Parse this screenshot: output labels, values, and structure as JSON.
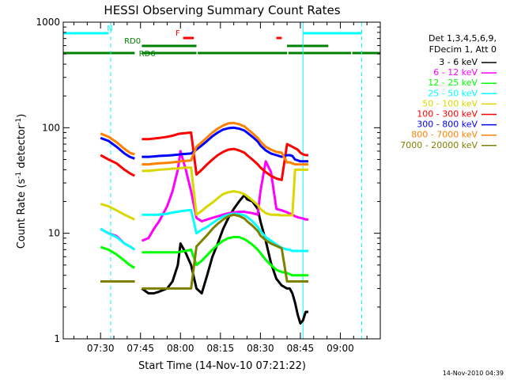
{
  "chart_data": {
    "type": "line",
    "title": "HESSI Observing Summary Count Rates",
    "xlabel": "Start Time (14-Nov-10 07:21:22)",
    "ylabel": "Count Rate (s",
    "ylabel_sup1": "-1",
    "ylabel_mid": " detector",
    "ylabel_sup2": "-1",
    "ylabel_end": ")",
    "y_scale": "log",
    "ylim": [
      1,
      1000
    ],
    "xlim_minutes": [
      -14,
      105
    ],
    "x_ticks": [
      {
        "t": 0,
        "label": "07:30"
      },
      {
        "t": 15,
        "label": "07:45"
      },
      {
        "t": 30,
        "label": "08:00"
      },
      {
        "t": 45,
        "label": "08:15"
      },
      {
        "t": 60,
        "label": "08:30"
      },
      {
        "t": 75,
        "label": "08:45"
      },
      {
        "t": 90,
        "label": "09:00"
      }
    ],
    "y_ticks": [
      {
        "v": 1,
        "label": "1"
      },
      {
        "v": 10,
        "label": "10"
      },
      {
        "v": 100,
        "label": "100"
      },
      {
        "v": 1000,
        "label": "1000"
      }
    ],
    "legend_header": [
      "Det 1,3,4,5,6,9,",
      "FDecim 1, Att 0"
    ],
    "legend_placement": "right",
    "series": [
      {
        "name": "3 - 6 keV",
        "color": "#000000",
        "x": [
          -14,
          -0.5,
          0,
          3,
          6,
          9,
          11,
          12.8,
          13.5,
          15,
          15.5,
          18,
          20,
          22,
          25,
          27,
          29,
          30,
          32,
          34,
          36,
          38,
          40,
          42,
          44,
          46,
          48,
          50,
          52,
          54,
          55,
          57,
          59,
          60,
          62,
          64,
          66,
          68,
          70,
          71,
          72,
          73,
          74,
          75,
          76,
          77,
          78,
          78.5
        ],
        "y": [
          null,
          null,
          3.5,
          3.5,
          3.5,
          3.5,
          3.5,
          3.5,
          null,
          null,
          3,
          2.7,
          2.7,
          2.8,
          3,
          3.5,
          5,
          8,
          6.5,
          5,
          3,
          2.7,
          4,
          6,
          8,
          11,
          14,
          17,
          20,
          23,
          21,
          20,
          17,
          13,
          8.5,
          5.2,
          3.7,
          3.2,
          3,
          3,
          2.7,
          2.2,
          1.7,
          1.4,
          1.5,
          1.8,
          1.8,
          null
        ]
      },
      {
        "name": "6 - 12 keV",
        "color": "#ff00ff",
        "x": [
          -14,
          -0.5,
          0,
          3,
          6,
          9,
          11,
          12.8,
          13.5,
          15,
          15.5,
          18,
          20,
          22,
          25,
          27,
          29,
          30,
          32,
          34,
          36,
          38,
          40,
          42,
          44,
          46,
          48,
          50,
          52,
          54,
          55,
          57,
          59,
          60,
          62,
          64,
          66,
          68,
          70,
          71,
          72,
          73,
          74,
          75,
          76,
          77,
          78,
          78.5
        ],
        "y": [
          null,
          null,
          11,
          10,
          9.4,
          8,
          7.5,
          7,
          null,
          null,
          8.5,
          9,
          11,
          13,
          18,
          25,
          40,
          60,
          40,
          25,
          14,
          13,
          13.5,
          14,
          14.5,
          15,
          15.5,
          15.8,
          16,
          16,
          15.8,
          15.5,
          15,
          25,
          48,
          38,
          17,
          16.5,
          15.8,
          15.4,
          15,
          14.5,
          14.2,
          14,
          13.8,
          13.5,
          13.5,
          null
        ]
      },
      {
        "name": "12 - 25 keV",
        "color": "#00ff00",
        "x": [
          -14,
          -0.5,
          0,
          3,
          6,
          9,
          11,
          12.8,
          13.5,
          15,
          15.5,
          18,
          20,
          22,
          25,
          27,
          29,
          30,
          32,
          34,
          36,
          38,
          40,
          42,
          44,
          46,
          48,
          50,
          52,
          54,
          55,
          57,
          59,
          60,
          62,
          64,
          66,
          68,
          70,
          71,
          72,
          73,
          74,
          75,
          76,
          77,
          78,
          78.5
        ],
        "y": [
          null,
          null,
          7.4,
          7,
          6.3,
          5.5,
          5,
          4.7,
          null,
          null,
          6.6,
          6.6,
          6.6,
          6.6,
          6.6,
          6.6,
          6.6,
          6.7,
          6.8,
          7,
          5,
          5.5,
          6.2,
          7,
          7.8,
          8.5,
          9,
          9.2,
          9.2,
          8.8,
          8.5,
          7.8,
          7,
          6.5,
          5.6,
          5,
          4.5,
          4.3,
          4.2,
          4.1,
          4,
          4,
          4,
          4,
          4,
          4,
          4,
          null
        ]
      },
      {
        "name": "25 - 50 keV",
        "color": "#00ffff",
        "x": [
          -14,
          -0.5,
          0,
          3,
          6,
          9,
          11,
          12.8,
          13.5,
          15,
          15.5,
          18,
          20,
          22,
          25,
          27,
          29,
          30,
          32,
          34,
          36,
          38,
          40,
          42,
          44,
          46,
          48,
          50,
          52,
          54,
          55,
          57,
          59,
          60,
          62,
          64,
          66,
          68,
          70,
          71,
          72,
          73,
          74,
          75,
          76,
          77,
          78,
          78.5
        ],
        "y": [
          null,
          null,
          11,
          10,
          9.2,
          8,
          7.5,
          7,
          null,
          null,
          15,
          15,
          15,
          15,
          15.3,
          15.7,
          16,
          16.2,
          16.4,
          16.6,
          10,
          10.8,
          11.5,
          12.5,
          13.5,
          14.4,
          15,
          15.3,
          15.2,
          14.8,
          14.3,
          13,
          11.5,
          10.5,
          9.2,
          8.5,
          7.8,
          7.3,
          7,
          7,
          6.8,
          6.8,
          6.8,
          6.8,
          6.8,
          6.8,
          6.8,
          null
        ]
      },
      {
        "name": "50 - 100 keV",
        "color": "#d8d800",
        "x": [
          -14,
          -0.5,
          0,
          3,
          6,
          9,
          11,
          12.8,
          13.5,
          15,
          15.5,
          18,
          20,
          22,
          25,
          27,
          29,
          30,
          32,
          34,
          36,
          38,
          40,
          42,
          44,
          46,
          48,
          50,
          52,
          54,
          55,
          57,
          59,
          60,
          62,
          64,
          66,
          68,
          70,
          71,
          72,
          73,
          74,
          75,
          76,
          77,
          78,
          78.5
        ],
        "y": [
          null,
          null,
          19,
          18,
          16.5,
          15,
          14.2,
          13.5,
          null,
          null,
          39,
          39,
          39.5,
          40,
          40.5,
          41,
          41,
          41.5,
          41.8,
          42,
          15,
          16.3,
          18,
          19.5,
          21.5,
          23.5,
          24.5,
          25,
          24.5,
          23.5,
          22.5,
          20.5,
          18.5,
          17,
          15.5,
          15,
          15,
          14.8,
          14.8,
          14.8,
          14.8,
          40,
          40,
          40,
          40,
          40,
          40,
          null
        ]
      },
      {
        "name": "100 - 300 keV",
        "color": "#ff0000",
        "x": [
          -14,
          -0.5,
          0,
          3,
          6,
          9,
          11,
          12.8,
          13.5,
          15,
          15.5,
          18,
          20,
          22,
          25,
          27,
          29,
          30,
          32,
          34,
          36,
          38,
          40,
          42,
          44,
          46,
          48,
          50,
          52,
          54,
          55,
          57,
          59,
          60,
          62,
          64,
          66,
          68,
          70,
          71,
          72,
          73,
          74,
          75,
          76,
          77,
          78,
          78.5
        ],
        "y": [
          null,
          null,
          55,
          50,
          46,
          40,
          37,
          35,
          null,
          null,
          78,
          78,
          79,
          80,
          82,
          84,
          87,
          88,
          89,
          90,
          36,
          40,
          45,
          50,
          55,
          59,
          62,
          63,
          61,
          58,
          55,
          50,
          45,
          42,
          38,
          35,
          33,
          32,
          70,
          68,
          66,
          64,
          62,
          58,
          56,
          55,
          55,
          null
        ]
      },
      {
        "name": "300 - 800 keV",
        "color": "#0000ff",
        "x": [
          -14,
          -0.5,
          0,
          3,
          6,
          9,
          11,
          12.8,
          13.5,
          15,
          15.5,
          18,
          20,
          22,
          25,
          27,
          29,
          30,
          32,
          34,
          36,
          38,
          40,
          42,
          44,
          46,
          48,
          50,
          52,
          54,
          55,
          57,
          59,
          60,
          62,
          64,
          66,
          68,
          70,
          71,
          72,
          73,
          74,
          75,
          76,
          77,
          78,
          78.5
        ],
        "y": [
          null,
          null,
          80,
          75,
          66,
          57,
          53,
          51,
          null,
          null,
          53,
          53,
          53.5,
          54,
          54.5,
          55,
          55.5,
          56,
          56.5,
          57,
          62,
          68,
          75,
          83,
          90,
          96,
          99,
          100,
          98,
          94,
          90,
          82,
          74,
          68,
          61,
          57,
          55,
          53,
          55,
          55,
          54,
          50,
          49,
          48,
          48,
          48,
          48,
          null
        ]
      },
      {
        "name": "800 - 7000 keV",
        "color": "#ff8000",
        "x": [
          -14,
          -0.5,
          0,
          3,
          6,
          9,
          11,
          12.8,
          13.5,
          15,
          15.5,
          18,
          20,
          22,
          25,
          27,
          29,
          30,
          32,
          34,
          36,
          38,
          40,
          42,
          44,
          46,
          48,
          50,
          52,
          54,
          55,
          57,
          59,
          60,
          62,
          64,
          66,
          68,
          70,
          71,
          72,
          73,
          74,
          75,
          76,
          77,
          78,
          78.5
        ],
        "y": [
          null,
          null,
          88,
          82,
          73,
          63,
          58,
          56,
          null,
          null,
          45,
          45,
          45.5,
          46,
          46.5,
          47,
          47.5,
          48,
          48.5,
          49,
          66,
          73,
          81,
          90,
          98,
          105,
          110,
          111,
          108,
          103,
          98,
          89,
          80,
          74,
          66,
          62,
          59,
          58,
          47,
          47,
          46,
          45,
          45,
          45,
          45,
          45,
          45,
          null
        ]
      },
      {
        "name": "7000 - 20000 keV",
        "color": "#808000",
        "x": [
          -14,
          -0.5,
          0,
          3,
          6,
          9,
          11,
          12.8,
          13.5,
          15,
          15.5,
          18,
          20,
          22,
          25,
          27,
          29,
          30,
          32,
          34,
          36,
          38,
          40,
          42,
          44,
          46,
          48,
          50,
          52,
          54,
          55,
          57,
          59,
          60,
          62,
          64,
          66,
          68,
          70,
          71,
          72,
          73,
          74,
          75,
          76,
          77,
          78,
          78.5
        ],
        "y": [
          null,
          null,
          3.5,
          3.5,
          3.5,
          3.5,
          3.5,
          3.5,
          null,
          null,
          3,
          3,
          3,
          3,
          3,
          3,
          3,
          3,
          3,
          3,
          7.5,
          8.5,
          9.6,
          11,
          12.3,
          13.5,
          14.5,
          15,
          14.6,
          13.8,
          13,
          11.8,
          10.5,
          9.5,
          8.6,
          8,
          7.6,
          7.2,
          3.5,
          3.5,
          3.5,
          3.5,
          3.5,
          3.5,
          3.5,
          3.5,
          3.5,
          null
        ]
      }
    ],
    "flags": [
      {
        "label": "N",
        "color": "#00ffff",
        "text_at": 3.5,
        "segments": [
          [
            -14,
            3
          ],
          [
            76,
            98
          ]
        ]
      },
      {
        "label": "F",
        "color": "#ff0000",
        "text_at": 29,
        "segments": [
          [
            31,
            35
          ],
          [
            66,
            68
          ]
        ]
      },
      {
        "label": "RD0",
        "color": "#008000",
        "text_at": 12,
        "segments": [
          [
            15.5,
            36
          ],
          [
            70,
            85.5
          ]
        ]
      },
      {
        "label": "RD6",
        "color": "#008000",
        "text_at": 17.5,
        "segments": [
          [
            -14,
            12.8
          ],
          [
            15.5,
            36
          ],
          [
            36.5,
            70
          ],
          [
            70.5,
            94
          ],
          [
            94.5,
            105
          ]
        ]
      }
    ],
    "vlines_solid_cyan": [
      -14,
      76
    ],
    "vlines_dashed_cyan": [
      3.8,
      98
    ]
  },
  "timestamp": "14-Nov-2010 04:39"
}
